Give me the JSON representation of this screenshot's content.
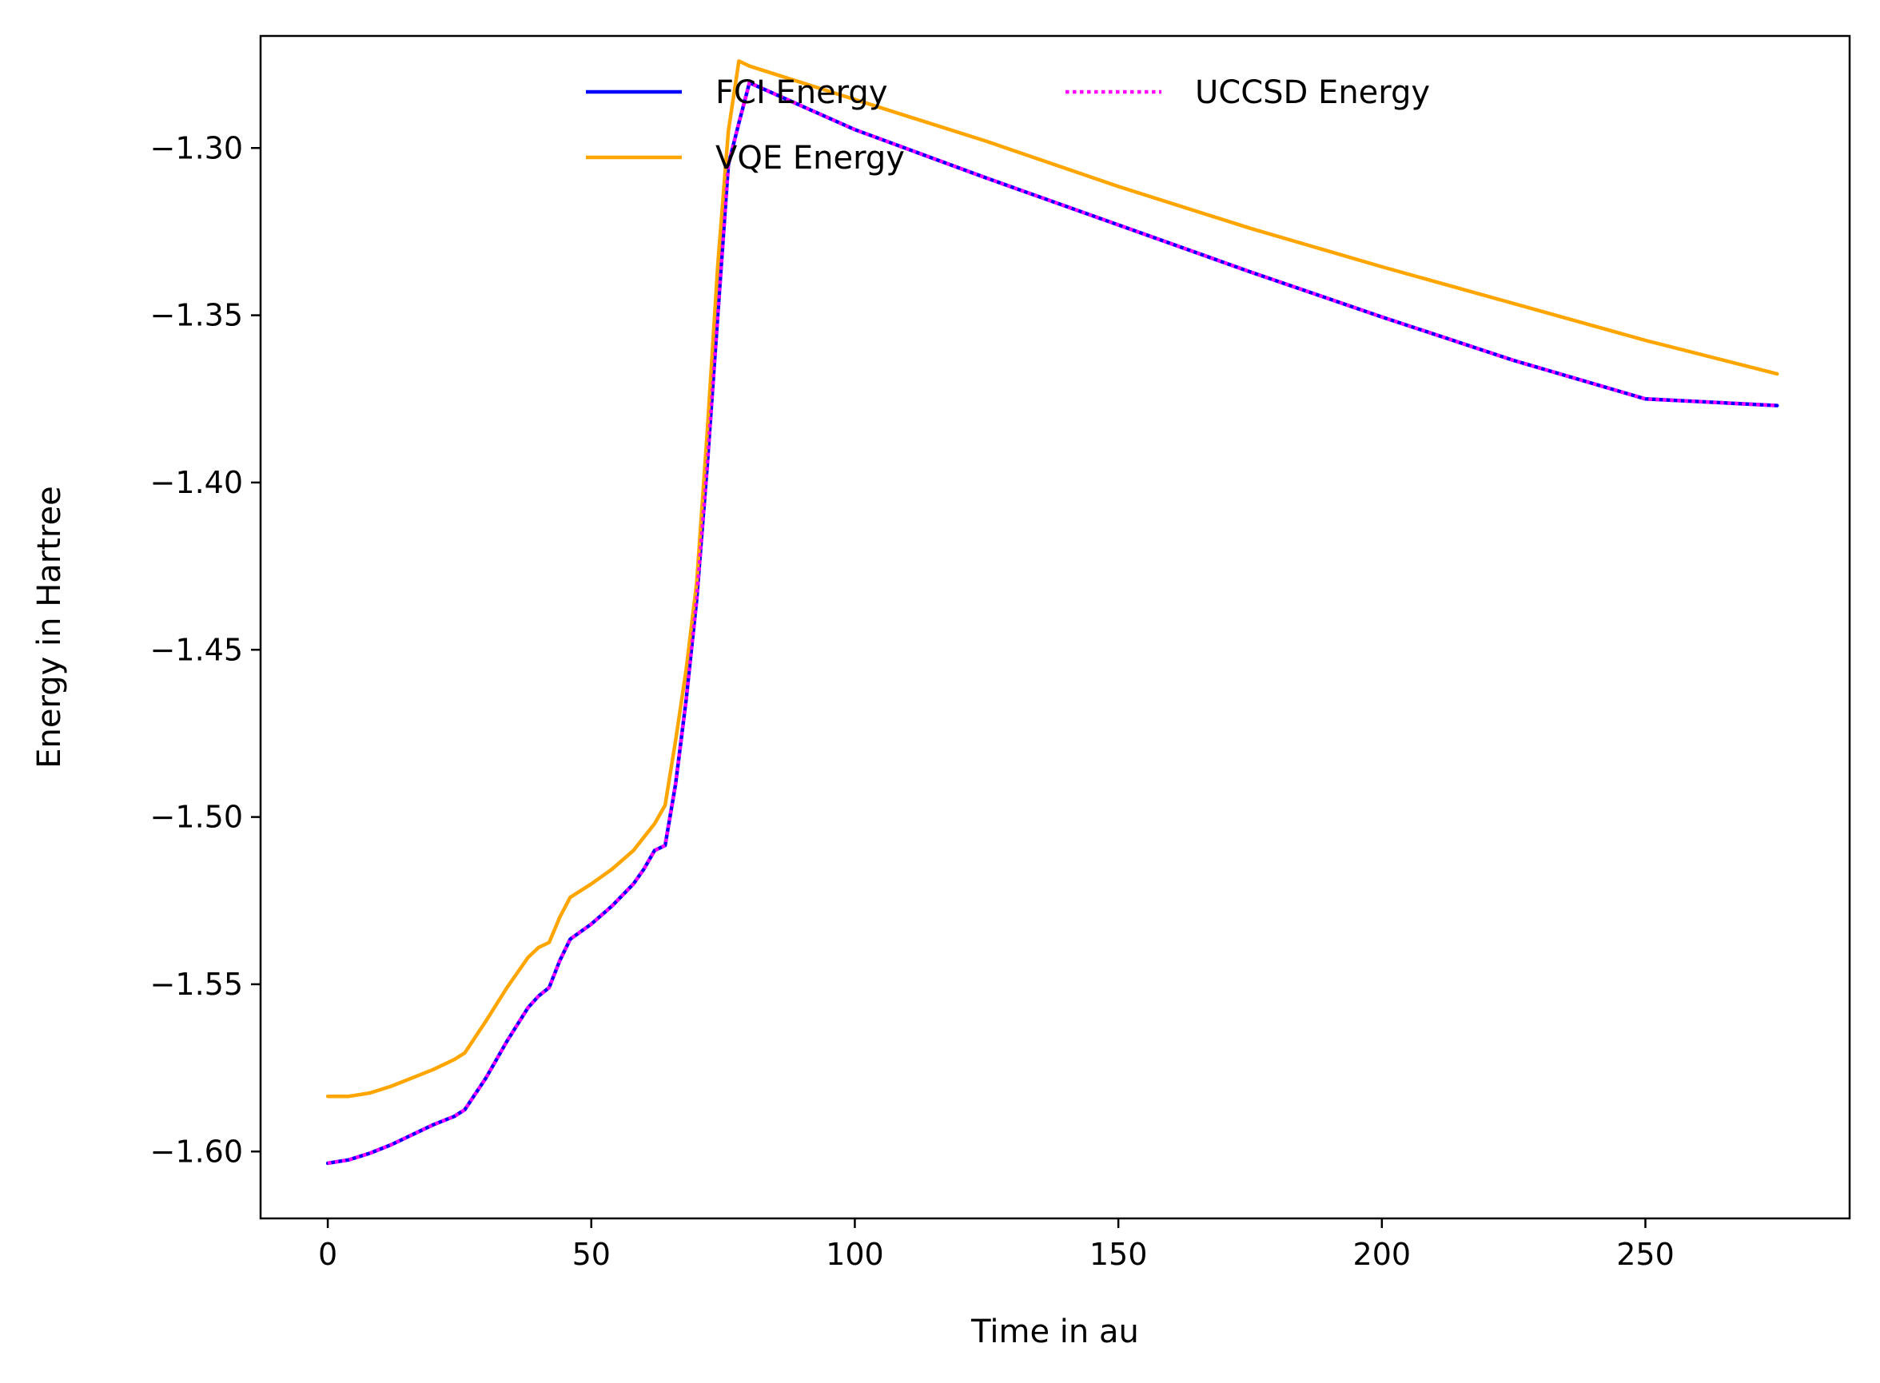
{
  "chart_data": {
    "type": "line",
    "title": "",
    "xlabel": "Time in au",
    "ylabel": "Energy in Hartree",
    "xlim": [
      -12.75,
      288.75
    ],
    "ylim": [
      -1.62,
      -1.2665
    ],
    "xticks": [
      0,
      50,
      100,
      150,
      200,
      250
    ],
    "xtick_labels": [
      "0",
      "50",
      "100",
      "150",
      "200",
      "250"
    ],
    "yticks": [
      -1.6,
      -1.55,
      -1.5,
      -1.45,
      -1.4,
      -1.35,
      -1.3
    ],
    "ytick_labels": [
      "−1.60",
      "−1.55",
      "−1.50",
      "−1.45",
      "−1.40",
      "−1.35",
      "−1.30"
    ],
    "grid": false,
    "legend": {
      "placement": "upper center",
      "columns": 2
    },
    "series": [
      {
        "name": "FCI Energy",
        "color": "#0000ff",
        "style": "solid",
        "x": [
          0,
          4,
          8,
          12,
          16,
          20,
          24,
          26,
          30,
          34,
          38,
          40,
          42,
          44,
          46,
          50,
          54,
          58,
          60,
          62,
          64,
          66,
          68,
          70,
          72,
          74,
          76,
          78,
          80,
          100,
          125,
          150,
          175,
          200,
          225,
          250,
          275
        ],
        "y": [
          -1.6035,
          -1.6025,
          -1.6005,
          -1.598,
          -1.595,
          -1.592,
          -1.5895,
          -1.5875,
          -1.578,
          -1.567,
          -1.557,
          -1.5535,
          -1.551,
          -1.543,
          -1.5365,
          -1.532,
          -1.5265,
          -1.52,
          -1.5155,
          -1.51,
          -1.5085,
          -1.49,
          -1.465,
          -1.435,
          -1.395,
          -1.35,
          -1.305,
          -1.2925,
          -1.2805,
          -1.2945,
          -1.309,
          -1.323,
          -1.337,
          -1.3505,
          -1.3635,
          -1.375,
          -1.377
        ]
      },
      {
        "name": "VQE Energy",
        "color": "#ffa500",
        "style": "solid",
        "x": [
          0,
          4,
          8,
          12,
          16,
          20,
          24,
          26,
          30,
          34,
          38,
          40,
          42,
          44,
          46,
          50,
          54,
          58,
          60,
          62,
          64,
          66,
          68,
          70,
          72,
          74,
          76,
          78,
          80,
          100,
          125,
          150,
          175,
          200,
          225,
          250,
          275
        ],
        "y": [
          -1.5835,
          -1.5835,
          -1.5825,
          -1.5805,
          -1.578,
          -1.5755,
          -1.5725,
          -1.5705,
          -1.561,
          -1.551,
          -1.542,
          -1.539,
          -1.5375,
          -1.53,
          -1.524,
          -1.52,
          -1.5155,
          -1.51,
          -1.506,
          -1.502,
          -1.4965,
          -1.477,
          -1.456,
          -1.43,
          -1.385,
          -1.335,
          -1.295,
          -1.274,
          -1.2755,
          -1.2855,
          -1.298,
          -1.3115,
          -1.324,
          -1.3355,
          -1.3465,
          -1.3575,
          -1.3675
        ]
      },
      {
        "name": "UCCSD Energy",
        "color": "#ff00ff",
        "style": "dotted",
        "x": [
          0,
          4,
          8,
          12,
          16,
          20,
          24,
          26,
          30,
          34,
          38,
          40,
          42,
          44,
          46,
          50,
          54,
          58,
          60,
          62,
          64,
          66,
          68,
          70,
          72,
          74,
          76,
          78,
          80,
          100,
          125,
          150,
          175,
          200,
          225,
          250,
          275
        ],
        "y": [
          -1.6035,
          -1.6025,
          -1.6005,
          -1.598,
          -1.595,
          -1.592,
          -1.5895,
          -1.5875,
          -1.578,
          -1.567,
          -1.557,
          -1.5535,
          -1.551,
          -1.543,
          -1.5365,
          -1.532,
          -1.5265,
          -1.52,
          -1.5155,
          -1.51,
          -1.5085,
          -1.49,
          -1.465,
          -1.435,
          -1.395,
          -1.35,
          -1.305,
          -1.2925,
          -1.2805,
          -1.2945,
          -1.309,
          -1.323,
          -1.337,
          -1.3505,
          -1.3635,
          -1.375,
          -1.377
        ]
      }
    ]
  }
}
